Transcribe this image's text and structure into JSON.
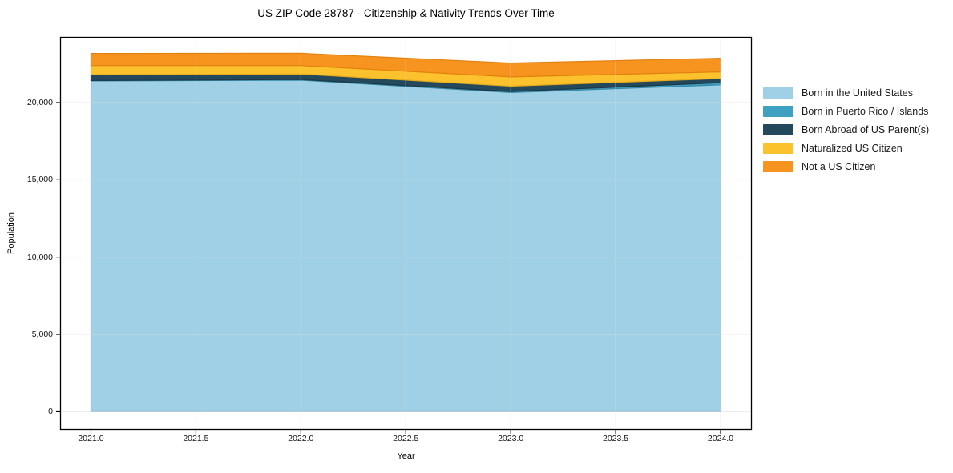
{
  "title": "US ZIP Code 28787 - Citizenship & Nativity Trends Over Time",
  "chart_data": {
    "type": "area",
    "stacked": true,
    "title": "US ZIP Code 28787 - Citizenship & Nativity Trends Over Time",
    "xlabel": "Year",
    "ylabel": "Population",
    "x": [
      2021,
      2022,
      2023,
      2024
    ],
    "series": [
      {
        "name": "Born in the United States",
        "color": "#a0d0e6",
        "edge": "#85b8d3",
        "values": [
          21400,
          21450,
          20650,
          21150
        ]
      },
      {
        "name": "Born in Puerto Rico / Islands",
        "color": "#3fa1c1",
        "edge": "#358aa6",
        "values": [
          30,
          40,
          60,
          140
        ]
      },
      {
        "name": "Born Abroad of US Parent(s)",
        "color": "#25495c",
        "edge": "#1b3947",
        "values": [
          370,
          360,
          350,
          260
        ]
      },
      {
        "name": "Naturalized US Citizen",
        "color": "#fcc22d",
        "edge": "#e5a91b",
        "values": [
          600,
          550,
          600,
          440
        ]
      },
      {
        "name": "Not a US Citizen",
        "color": "#f79420",
        "edge": "#e2810f",
        "values": [
          780,
          790,
          900,
          880
        ]
      }
    ],
    "x_tick_values": [
      2021.0,
      2021.5,
      2022.0,
      2022.5,
      2023.0,
      2023.5,
      2024.0
    ],
    "x_tick_labels": [
      "2021.0",
      "2021.5",
      "2022.0",
      "2022.5",
      "2023.0",
      "2023.5",
      "2024.0"
    ],
    "y_tick_values": [
      0,
      5000,
      10000,
      15000,
      20000
    ],
    "y_tick_labels": [
      "0",
      "5,000",
      "10,000",
      "15,000",
      "20,000"
    ],
    "xlim": [
      2020.853,
      2024.149
    ],
    "ylim": [
      -1170,
      24250
    ],
    "grid": true,
    "grid_color": "#e0e0e0",
    "spine_color": "#000000",
    "legend_position": "right-outside"
  }
}
